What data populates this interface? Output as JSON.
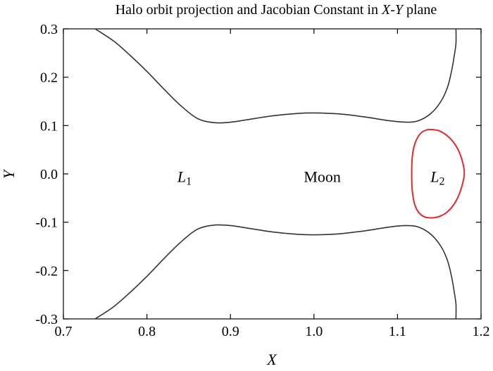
{
  "chart_data": {
    "type": "line",
    "title_parts": {
      "before": "Halo orbit projection and Jacobian Constant in ",
      "x": "X",
      "dash": "-",
      "y": "Y",
      "after": " plane"
    },
    "xlabel": "X",
    "ylabel": "Y",
    "xlim": [
      0.7,
      1.2
    ],
    "ylim": [
      -0.3,
      0.3
    ],
    "xticks": [
      0.7,
      0.8,
      0.9,
      1.0,
      1.1,
      1.2
    ],
    "xtick_labels": [
      "0.7",
      "0.8",
      "0.9",
      "1.0",
      "1.1",
      "1.2"
    ],
    "yticks": [
      0.3,
      0.2,
      0.1,
      0.0,
      -0.1,
      -0.2,
      -0.3
    ],
    "ytick_labels": [
      "0.3",
      "0.2",
      "0.1",
      "0.0",
      "-0.1",
      "-0.2",
      "-0.3"
    ],
    "grid": false,
    "series": [
      {
        "color": "#333333",
        "x": [
          0.738,
          0.76,
          0.78,
          0.8,
          0.82,
          0.84,
          0.86,
          0.88,
          0.9,
          0.92,
          0.95,
          0.98,
          1.0,
          1.03,
          1.06,
          1.09,
          1.11,
          1.125,
          1.14,
          1.152,
          1.16,
          1.165,
          1.168,
          1.17,
          1.17
        ],
        "y": [
          0.3,
          0.275,
          0.245,
          0.212,
          0.176,
          0.142,
          0.115,
          0.106,
          0.107,
          0.112,
          0.12,
          0.125,
          0.126,
          0.124,
          0.118,
          0.11,
          0.107,
          0.11,
          0.125,
          0.15,
          0.18,
          0.215,
          0.245,
          0.27,
          0.3
        ]
      },
      {
        "color": "#333333",
        "x": [
          0.738,
          0.76,
          0.78,
          0.8,
          0.82,
          0.84,
          0.86,
          0.88,
          0.9,
          0.92,
          0.95,
          0.98,
          1.0,
          1.03,
          1.06,
          1.09,
          1.11,
          1.125,
          1.14,
          1.152,
          1.16,
          1.165,
          1.168,
          1.17,
          1.17
        ],
        "y": [
          -0.3,
          -0.275,
          -0.245,
          -0.212,
          -0.176,
          -0.142,
          -0.115,
          -0.106,
          -0.107,
          -0.112,
          -0.12,
          -0.125,
          -0.126,
          -0.124,
          -0.118,
          -0.11,
          -0.107,
          -0.11,
          -0.125,
          -0.15,
          -0.18,
          -0.215,
          -0.245,
          -0.27,
          -0.3
        ]
      },
      {
        "color": "#e8292b",
        "x": [
          1.137,
          1.15,
          1.162,
          1.171,
          1.177,
          1.18,
          1.177,
          1.171,
          1.163,
          1.153,
          1.141,
          1.13,
          1.122,
          1.118,
          1.117,
          1.118,
          1.122,
          1.129,
          1.137
        ],
        "y": [
          0.092,
          0.089,
          0.075,
          0.055,
          0.03,
          0.002,
          -0.026,
          -0.053,
          -0.073,
          -0.086,
          -0.091,
          -0.087,
          -0.07,
          -0.04,
          0.0,
          0.04,
          0.068,
          0.086,
          0.092
        ]
      }
    ],
    "annotations": [
      {
        "letter": "L",
        "subscript": "1",
        "x": 0.845,
        "y": -0.005
      },
      {
        "text": "Moon",
        "x": 1.01,
        "y": -0.005
      },
      {
        "letter": "L",
        "subscript": "2",
        "x": 1.148,
        "y": -0.005
      }
    ]
  }
}
